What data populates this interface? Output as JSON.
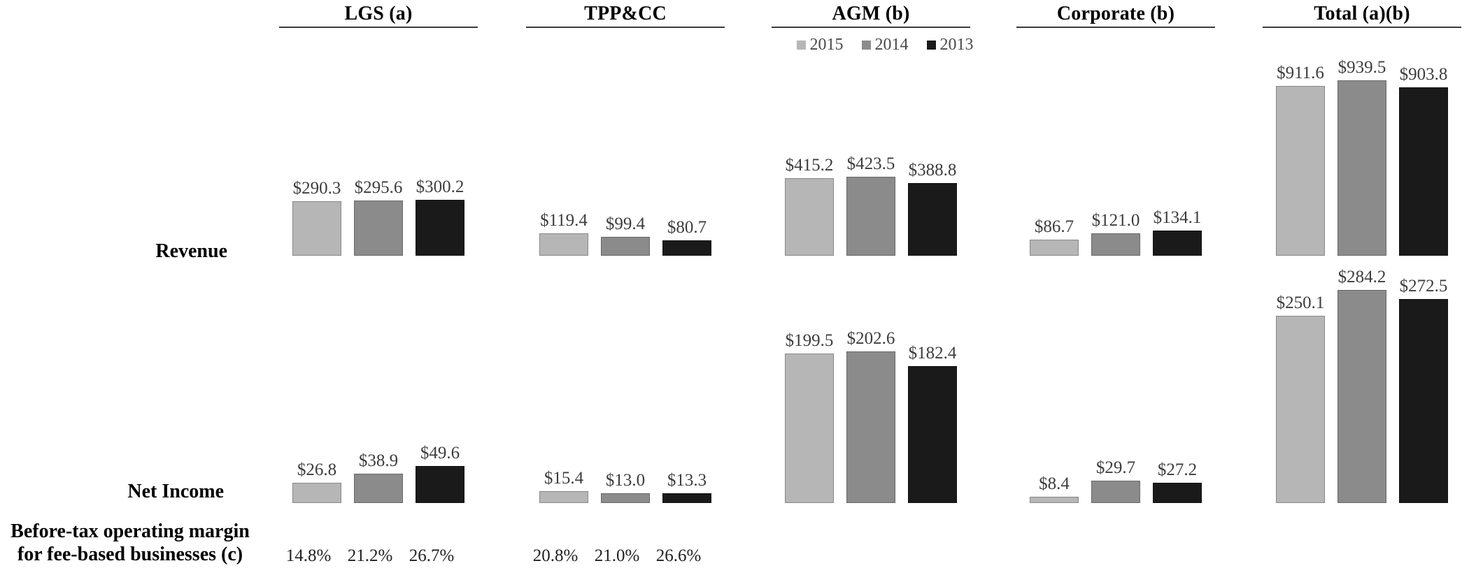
{
  "row_labels": {
    "revenue": "Revenue",
    "net_income": "Net Income",
    "margin_line1": "Before-tax operating margin",
    "margin_line2": "for fee-based businesses (c)"
  },
  "legend": {
    "items": [
      {
        "label": "2015",
        "color": "#b6b6b6"
      },
      {
        "label": "2014",
        "color": "#8b8b8b"
      },
      {
        "label": "2013",
        "color": "#1a1a1a"
      }
    ]
  },
  "chart_data": {
    "type": "bar",
    "currency_prefix": "$",
    "years": [
      "2015",
      "2014",
      "2013"
    ],
    "series_colors": [
      "#b6b6b6",
      "#8b8b8b",
      "#1a1a1a"
    ],
    "legend_position": "top-center-under-AGM",
    "grid": false,
    "rows": [
      {
        "label": "Revenue"
      },
      {
        "label": "Net Income"
      },
      {
        "label": "Before-tax operating margin for fee-based businesses (c)"
      }
    ],
    "segments": [
      {
        "name": "LGS (a)",
        "revenue": [
          290.3,
          295.6,
          300.2
        ],
        "net_income": [
          26.8,
          38.9,
          49.6
        ],
        "margins": [
          "14.8%",
          "21.2%",
          "26.7%"
        ]
      },
      {
        "name": "TPP&CC",
        "revenue": [
          119.4,
          99.4,
          80.7
        ],
        "net_income": [
          15.4,
          13.0,
          13.3
        ],
        "margins": [
          "20.8%",
          "21.0%",
          "26.6%"
        ]
      },
      {
        "name": "AGM (b)",
        "revenue": [
          415.2,
          423.5,
          388.8
        ],
        "net_income": [
          199.5,
          202.6,
          182.4
        ],
        "margins": []
      },
      {
        "name": "Corporate (b)",
        "revenue": [
          86.7,
          121.0,
          134.1
        ],
        "net_income": [
          8.4,
          29.7,
          27.2
        ],
        "margins": []
      },
      {
        "name": "Total (a)(b)",
        "revenue": [
          911.6,
          939.5,
          903.8
        ],
        "net_income": [
          250.1,
          284.2,
          272.5
        ],
        "margins": []
      }
    ]
  }
}
